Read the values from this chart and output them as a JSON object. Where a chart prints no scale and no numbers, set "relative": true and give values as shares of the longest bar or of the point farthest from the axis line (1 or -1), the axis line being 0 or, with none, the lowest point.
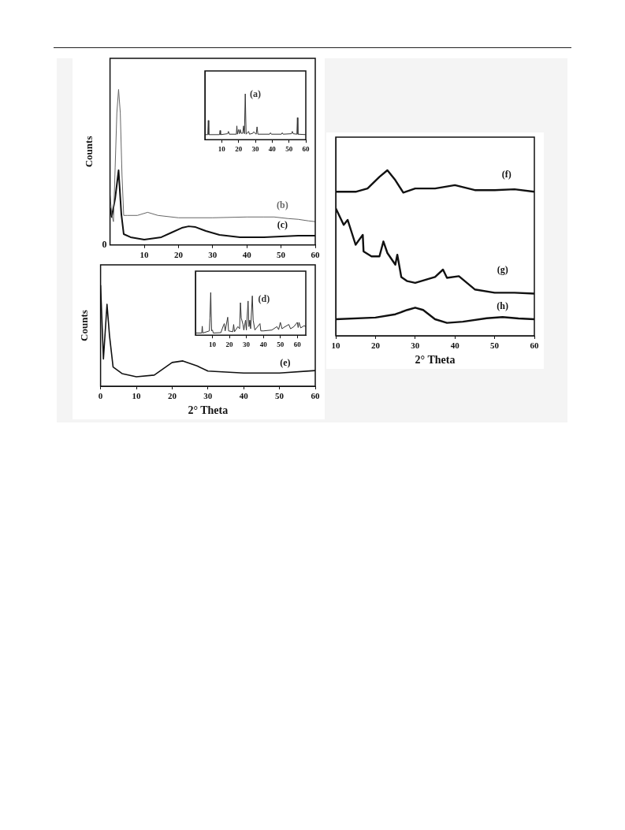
{
  "chart_data": [
    {
      "type": "line",
      "ylabel": "Counts",
      "relative": true,
      "xlim": [
        0,
        60
      ],
      "xticks": [
        10,
        20,
        30,
        40,
        50,
        60
      ],
      "grid": false,
      "annotations": [
        "0"
      ],
      "series": [
        {
          "name": "(b)",
          "color": "#666666",
          "x": [
            0,
            0.5,
            1,
            1.5,
            2,
            2.5,
            3,
            3.5,
            4,
            5,
            8,
            11,
            14,
            20,
            30,
            40,
            45,
            48,
            52,
            55,
            58,
            60
          ],
          "values": [
            0.32,
            0.2,
            0.15,
            0.5,
            0.85,
            1,
            0.85,
            0.45,
            0.19,
            0.19,
            0.19,
            0.21,
            0.19,
            0.175,
            0.175,
            0.18,
            0.18,
            0.18,
            0.17,
            0.165,
            0.155,
            0.15
          ]
        },
        {
          "name": "(c)",
          "color": "#111111",
          "x": [
            0,
            0.5,
            1.5,
            2.5,
            3.3,
            4,
            6,
            10,
            15,
            18,
            21,
            23,
            25,
            28,
            32,
            38,
            45,
            50,
            55,
            60
          ],
          "values": [
            0.24,
            0.18,
            0.3,
            0.48,
            0.2,
            0.07,
            0.05,
            0.035,
            0.05,
            0.08,
            0.11,
            0.12,
            0.115,
            0.09,
            0.065,
            0.05,
            0.05,
            0.055,
            0.06,
            0.06
          ]
        }
      ]
    },
    {
      "type": "line",
      "relative": true,
      "xlim": [
        0,
        60
      ],
      "xticks": [
        10,
        20,
        30,
        40,
        50,
        60
      ],
      "grid": false,
      "series": [
        {
          "name": "(a)",
          "color": "#333333",
          "x": [
            0,
            1.7,
            2,
            2.3,
            8.7,
            9,
            9.3,
            13.5,
            14,
            14.5,
            18.7,
            19,
            19.3,
            20,
            20.5,
            21,
            21.5,
            22.5,
            23,
            23.5,
            24,
            24.5,
            26,
            26.5,
            28.5,
            29,
            30.5,
            31,
            31.5,
            38.5,
            39,
            39.5,
            45.5,
            46,
            46.5,
            51.5,
            52,
            52.5,
            54.7,
            55,
            55.3,
            60
          ],
          "values": [
            0.11,
            0.11,
            0.42,
            0.11,
            0.11,
            0.2,
            0.11,
            0.13,
            0.18,
            0.12,
            0.12,
            0.3,
            0.12,
            0.22,
            0.13,
            0.22,
            0.14,
            0.14,
            0.3,
            0.13,
            1,
            0.12,
            0.18,
            0.12,
            0.14,
            0.17,
            0.12,
            0.28,
            0.12,
            0.12,
            0.15,
            0.12,
            0.12,
            0.15,
            0.12,
            0.13,
            0.18,
            0.13,
            0.12,
            0.48,
            0.12,
            0.11
          ]
        }
      ]
    },
    {
      "type": "line",
      "xlabel": "2° Theta",
      "ylabel": "Counts",
      "relative": true,
      "xlim": [
        0,
        60
      ],
      "xticks": [
        0,
        10,
        20,
        30,
        40,
        50,
        60
      ],
      "grid": false,
      "series": [
        {
          "name": "(e)",
          "color": "#111111",
          "x": [
            0,
            0.8,
            1.8,
            2.5,
            3.5,
            6,
            10,
            15,
            20,
            23,
            27,
            30,
            40,
            50,
            60
          ],
          "values": [
            1,
            0.27,
            0.81,
            0.5,
            0.19,
            0.125,
            0.094,
            0.11,
            0.235,
            0.25,
            0.2,
            0.15,
            0.13,
            0.13,
            0.155
          ]
        }
      ]
    },
    {
      "type": "line",
      "relative": true,
      "xlim": [
        0,
        65
      ],
      "xticks": [
        10,
        20,
        30,
        40,
        50,
        60
      ],
      "grid": false,
      "series": [
        {
          "name": "(d)",
          "color": "#333333",
          "x": [
            0,
            3.7,
            4,
            4.3,
            8.2,
            8.5,
            9,
            9.5,
            10,
            10.5,
            15,
            16.5,
            17,
            17.5,
            19,
            19.5,
            22,
            22.5,
            23,
            25,
            26,
            26.5,
            27,
            28,
            28.5,
            29.5,
            30,
            31,
            31.5,
            32,
            32.5,
            33.5,
            34,
            35,
            38,
            38.5,
            40,
            45,
            48,
            49,
            50,
            51,
            52,
            55,
            56,
            58,
            60,
            60.5,
            61,
            62,
            64,
            65
          ],
          "values": [
            0.05,
            0.05,
            0.21,
            0.05,
            0.1,
            0.4,
            1,
            0.1,
            0.12,
            0.05,
            0.06,
            0.23,
            0.27,
            0.1,
            0.42,
            0.1,
            0.08,
            0.25,
            0.08,
            0.2,
            0.15,
            0.76,
            0.4,
            0.25,
            0.12,
            0.35,
            0.12,
            0.8,
            0.2,
            0.35,
            0.15,
            0.92,
            0.35,
            0.12,
            0.27,
            0.1,
            0.1,
            0.12,
            0.2,
            0.13,
            0.3,
            0.15,
            0.18,
            0.25,
            0.15,
            0.2,
            0.3,
            0.18,
            0.3,
            0.17,
            0.22,
            0.2
          ]
        }
      ]
    },
    {
      "type": "line",
      "xlabel": "2° Theta",
      "relative": true,
      "xlim": [
        10,
        60
      ],
      "xticks": [
        10,
        20,
        30,
        40,
        50,
        60
      ],
      "grid": false,
      "series": [
        {
          "name": "(f)",
          "color": "#111111",
          "x": [
            10,
            15,
            18,
            21,
            23,
            25,
            27,
            30,
            35,
            40,
            45,
            50,
            55,
            60
          ],
          "values": [
            0.87,
            0.87,
            0.89,
            0.96,
            1,
            0.94,
            0.865,
            0.89,
            0.89,
            0.91,
            0.88,
            0.88,
            0.885,
            0.87
          ]
        },
        {
          "name": "(g)",
          "color": "#111111",
          "x": [
            10,
            12,
            13,
            15,
            16.8,
            17,
            19,
            21,
            22,
            23,
            25,
            25.5,
            26.5,
            28,
            30,
            35,
            37,
            38,
            41,
            45,
            50,
            55,
            60
          ],
          "values": [
            0.77,
            0.67,
            0.7,
            0.55,
            0.61,
            0.51,
            0.48,
            0.48,
            0.57,
            0.5,
            0.43,
            0.49,
            0.355,
            0.33,
            0.32,
            0.355,
            0.4,
            0.35,
            0.36,
            0.28,
            0.26,
            0.26,
            0.255
          ]
        },
        {
          "name": "(h)",
          "color": "#111111",
          "x": [
            10,
            20,
            25,
            28,
            30,
            32,
            35,
            38,
            42,
            48,
            52,
            56,
            60
          ],
          "values": [
            0.1,
            0.11,
            0.13,
            0.156,
            0.17,
            0.156,
            0.1,
            0.078,
            0.085,
            0.106,
            0.113,
            0.105,
            0.1
          ]
        }
      ]
    }
  ]
}
